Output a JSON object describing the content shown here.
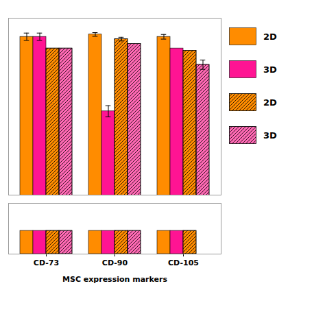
{
  "chart_data": [
    {
      "type": "bar",
      "categories": [
        "CD-73",
        "CD-90",
        "CD-105"
      ],
      "ylim": [
        65,
        103
      ],
      "tick_labels": false,
      "legend": "right",
      "series": [
        {
          "name": "2D",
          "color": "#FF8C00",
          "values": [
            99.0,
            99.5,
            99.0
          ],
          "errors": [
            0.8,
            0.4,
            0.5
          ]
        },
        {
          "name": "3D",
          "color": "#FF1493",
          "values": [
            99.0,
            83.0,
            96.5
          ],
          "errors": [
            0.8,
            1.2,
            0.0
          ]
        },
        {
          "name": "2D",
          "color": "#FF8C00",
          "values": [
            96.5,
            98.5,
            96.0
          ],
          "errors": [
            0.0,
            0.4,
            0.0
          ]
        },
        {
          "name": "3D",
          "color": "#FF69B4",
          "values": [
            96.5,
            97.5,
            93.0
          ],
          "errors": [
            0.0,
            0.0,
            1.0
          ]
        }
      ]
    },
    {
      "type": "bar",
      "categories": [
        "CD-73",
        "CD-90",
        "CD-105"
      ],
      "xlabel": "MSC expression markers",
      "ylim": [
        0,
        12
      ],
      "tick_labels": "x",
      "series": [
        {
          "name": "2D",
          "color": "#FF8C00",
          "values": [
            5.5,
            5.5,
            5.5
          ]
        },
        {
          "name": "3D",
          "color": "#FF1493",
          "values": [
            5.5,
            5.5,
            5.5
          ]
        },
        {
          "name": "2D",
          "color": "#FF8C00",
          "values": [
            5.5,
            5.5,
            5.5
          ]
        },
        {
          "name": "3D",
          "color": "#FF69B4",
          "values": [
            5.5,
            5.5,
            0.0
          ]
        }
      ]
    }
  ]
}
